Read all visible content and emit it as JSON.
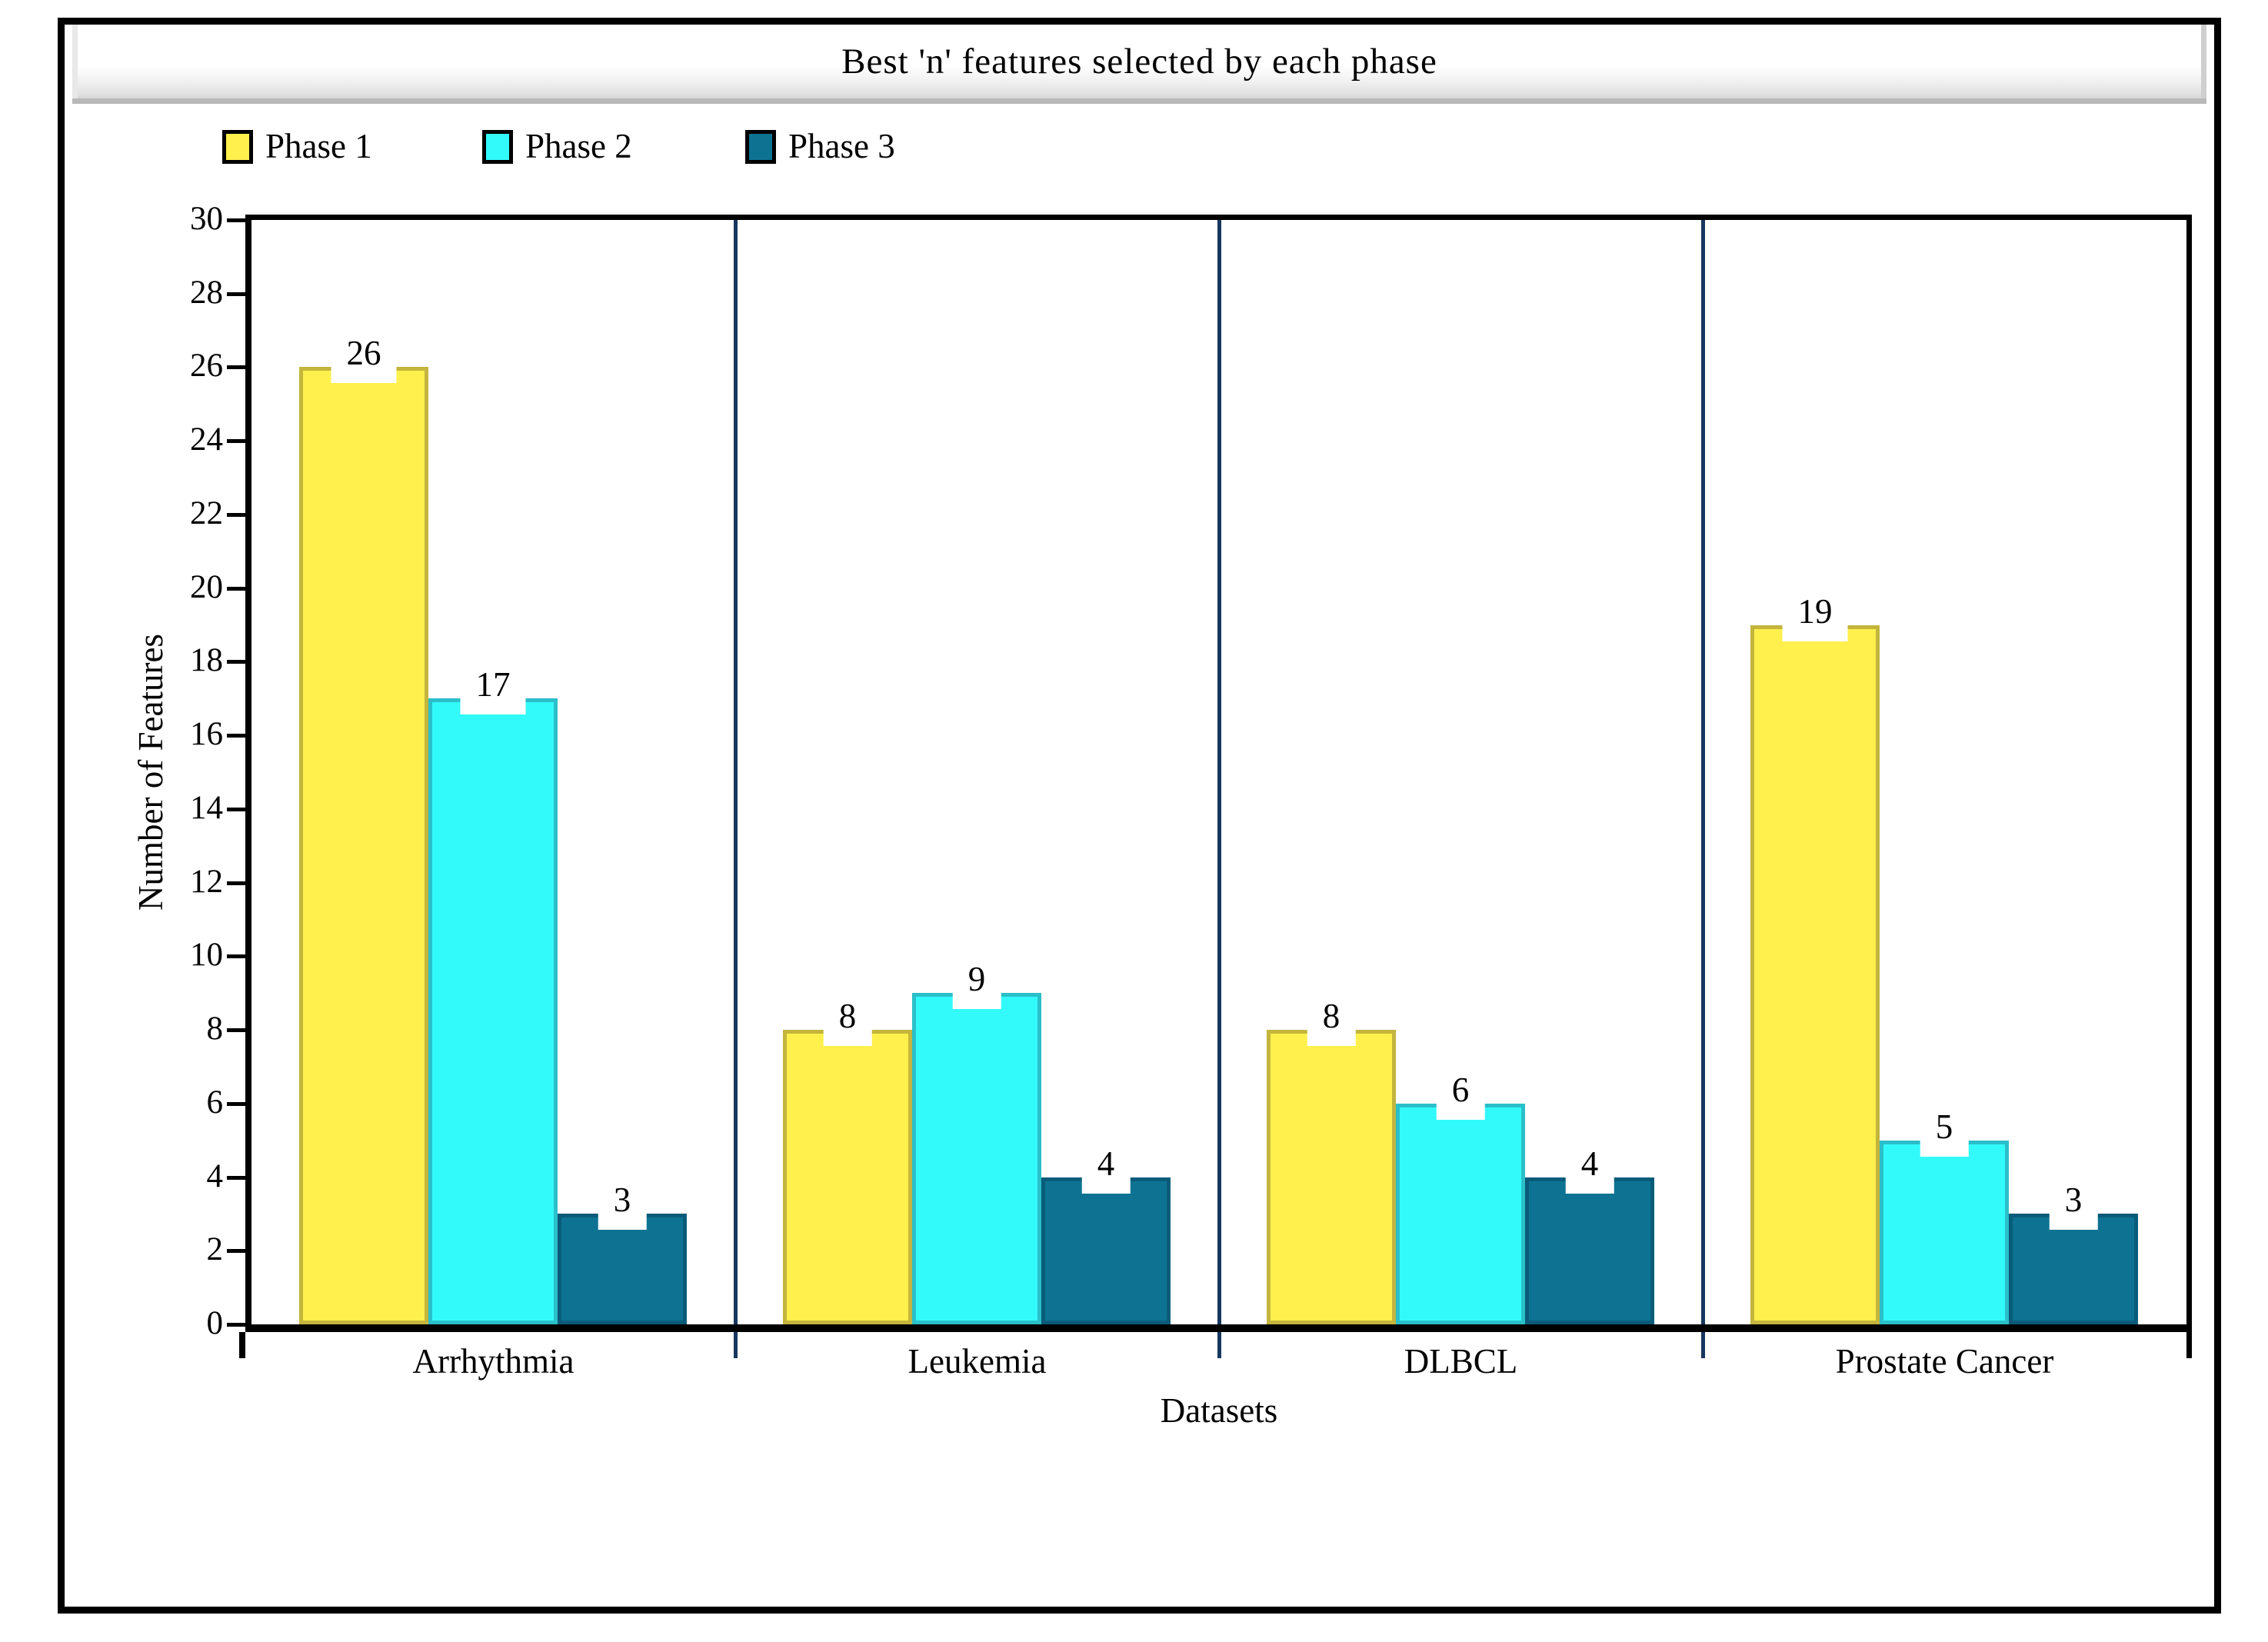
{
  "window": {
    "title": "Best 'n' features selected by each phase"
  },
  "chart_data": {
    "type": "bar",
    "title": "Best 'n' features selected by each phase",
    "categories": [
      "Arrhythmia",
      "Leukemia",
      "DLBCL",
      "Prostate Cancer"
    ],
    "series": [
      {
        "name": "Phase 1",
        "values": [
          26,
          8,
          8,
          19
        ],
        "fill": "#FFF04D",
        "border": "#C3B53D"
      },
      {
        "name": "Phase 2",
        "values": [
          17,
          9,
          6,
          5
        ],
        "fill": "#33FAFA",
        "border": "#2ABFC9"
      },
      {
        "name": "Phase 3",
        "values": [
          3,
          4,
          4,
          3
        ],
        "fill": "#0E7392",
        "border": "#0A5B7A"
      }
    ],
    "bar_value_labels": true,
    "xlabel": "Datasets",
    "ylabel": "Number of Features",
    "ylim": [
      0,
      30
    ],
    "ytick_step": 2,
    "yticks": [
      0,
      2,
      4,
      6,
      8,
      10,
      12,
      14,
      16,
      18,
      20,
      22,
      24,
      26,
      28,
      30
    ],
    "grid": false,
    "legend_position": "top-left",
    "colors": {
      "separator": "#17375E",
      "axis": "#000000",
      "plot_background": "#FFFFFF",
      "titlebar_gradient_top": "#FFFFFF",
      "titlebar_gradient_bottom": "#D6D6D6"
    }
  }
}
